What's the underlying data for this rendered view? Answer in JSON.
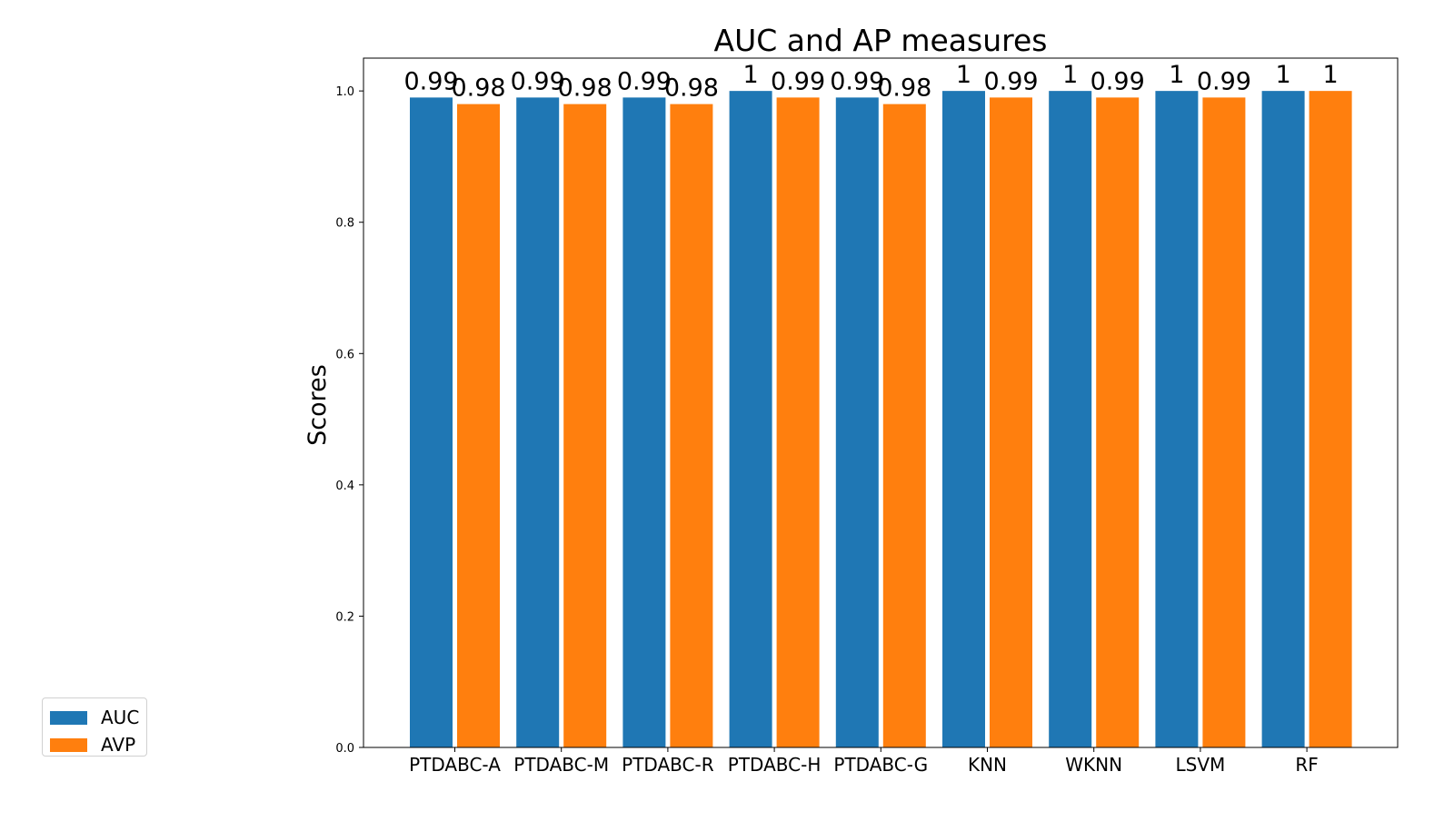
{
  "chart_data": {
    "type": "bar",
    "title": "AUC and AP measures",
    "xlabel": "",
    "ylabel": "Scores",
    "categories": [
      "PTDABC-A",
      "PTDABC-M",
      "PTDABC-R",
      "PTDABC-H",
      "PTDABC-G",
      "KNN",
      "WKNN",
      "LSVM",
      "RF"
    ],
    "series": [
      {
        "name": "AUC",
        "color": "#1f77b4",
        "values": [
          0.99,
          0.99,
          0.99,
          1,
          0.99,
          1,
          1,
          1,
          1
        ]
      },
      {
        "name": "AVP",
        "color": "#ff7f0e",
        "values": [
          0.98,
          0.98,
          0.98,
          0.99,
          0.98,
          0.99,
          0.99,
          0.99,
          1
        ]
      }
    ],
    "ylim": [
      0,
      1.05
    ],
    "yticks": [
      "0.0",
      "0.2",
      "0.4",
      "0.6",
      "0.8",
      "1.0"
    ],
    "grid": false,
    "legend_position": "bottom-left"
  }
}
